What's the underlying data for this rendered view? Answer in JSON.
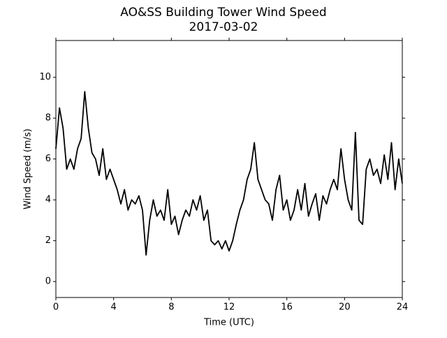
{
  "chart_data": {
    "type": "line",
    "title": "AO&SS Building Tower Wind Speed",
    "subtitle": "2017-03-02",
    "x_label": "Time (UTC)",
    "y_label": "Wind Speed (m/s)",
    "x": [
      0,
      0.25,
      0.5,
      0.75,
      1,
      1.25,
      1.5,
      1.75,
      2,
      2.25,
      2.5,
      2.75,
      3,
      3.25,
      3.5,
      3.75,
      4,
      4.25,
      4.5,
      4.75,
      5,
      5.25,
      5.5,
      5.75,
      6,
      6.25,
      6.5,
      6.75,
      7,
      7.25,
      7.5,
      7.75,
      8,
      8.25,
      8.5,
      8.75,
      9,
      9.25,
      9.5,
      9.75,
      10,
      10.25,
      10.5,
      10.75,
      11,
      11.25,
      11.5,
      11.75,
      12,
      12.25,
      12.5,
      12.75,
      13,
      13.25,
      13.5,
      13.75,
      14,
      14.25,
      14.5,
      14.75,
      15,
      15.25,
      15.5,
      15.75,
      16,
      16.25,
      16.5,
      16.75,
      17,
      17.25,
      17.5,
      17.75,
      18,
      18.25,
      18.5,
      18.75,
      19,
      19.25,
      19.5,
      19.75,
      20,
      20.25,
      20.5,
      20.75,
      21,
      21.25,
      21.5,
      21.75,
      22,
      22.25,
      22.5,
      22.75,
      23,
      23.25,
      23.5,
      23.75,
      24
    ],
    "series": [
      {
        "name": "Wind Speed",
        "color": "#000000",
        "values": [
          6.5,
          8.5,
          7.5,
          5.5,
          6,
          5.5,
          6.5,
          7,
          9.3,
          7.5,
          6.3,
          6,
          5.2,
          6.5,
          5,
          5.5,
          5,
          4.5,
          3.8,
          4.5,
          3.5,
          4,
          3.8,
          4.2,
          3.5,
          1.3,
          3,
          4,
          3.2,
          3.5,
          3,
          4.5,
          2.8,
          3.2,
          2.3,
          3,
          3.5,
          3.2,
          4,
          3.5,
          4.2,
          3,
          3.5,
          2,
          1.8,
          2,
          1.6,
          2,
          1.5,
          2,
          2.8,
          3.5,
          4,
          5,
          5.5,
          6.8,
          5,
          4.5,
          4,
          3.8,
          3,
          4.5,
          5.2,
          3.5,
          4,
          3,
          3.5,
          4.5,
          3.5,
          4.8,
          3.2,
          3.8,
          4.3,
          3,
          4.2,
          3.8,
          4.5,
          5,
          4.5,
          6.5,
          5,
          4,
          3.5,
          7.3,
          3,
          2.8,
          5.5,
          6,
          5.2,
          5.5,
          4.8,
          6.2,
          5,
          6.8,
          4.5,
          6,
          4.8
        ]
      }
    ],
    "xlim": [
      0,
      24
    ],
    "xticks": [
      0,
      4,
      8,
      12,
      16,
      20,
      24
    ],
    "ylim": [
      -0.78,
      11.8
    ],
    "yticks": [
      0,
      2,
      4,
      6,
      8,
      10
    ],
    "grid": false
  }
}
